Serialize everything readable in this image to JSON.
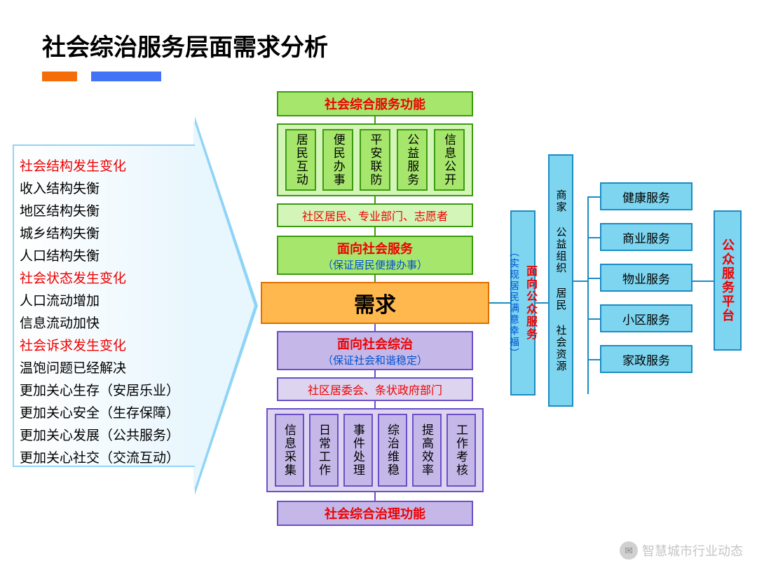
{
  "title": "社会综治服务层面需求分析",
  "accent_bars": {
    "orange": "#f56d09",
    "blue": "#4472f6"
  },
  "arrow_list": [
    {
      "text": "社会结构发生变化",
      "color": "red"
    },
    {
      "text": "收入结构失衡",
      "color": "black"
    },
    {
      "text": "地区结构失衡",
      "color": "black"
    },
    {
      "text": "城乡结构失衡",
      "color": "black"
    },
    {
      "text": "人口结构失衡",
      "color": "black"
    },
    {
      "text": "社会状态发生变化",
      "color": "red"
    },
    {
      "text": "人口流动增加",
      "color": "black"
    },
    {
      "text": "信息流动加快",
      "color": "black"
    },
    {
      "text": "社会诉求发生变化",
      "color": "red"
    },
    {
      "text": "温饱问题已经解决",
      "color": "black"
    },
    {
      "text": "更加关心生存（安居乐业）",
      "color": "black"
    },
    {
      "text": "更加关心安全（生存保障）",
      "color": "black"
    },
    {
      "text": "更加关心发展（公共服务）",
      "color": "black"
    },
    {
      "text": "更加关心社交（交流互动）",
      "color": "black"
    }
  ],
  "top_func": "社会综合服务功能",
  "green_items": [
    "居民互动",
    "便民办事",
    "平安联防",
    "公益服务",
    "信息公开"
  ],
  "green_actors": "社区居民、专业部门、志愿者",
  "service_face": {
    "title": "面向社会服务",
    "sub": "（保证居民便捷办事）"
  },
  "demand": "需求",
  "gov_face": {
    "title": "面向社会综治",
    "sub": "（保证社会和谐稳定）"
  },
  "purple_actors": "社区居委会、条状政府部门",
  "purple_items": [
    "信息采集",
    "日常工作",
    "事件处理",
    "综治维稳",
    "提高效率",
    "工作考核"
  ],
  "bottom_func": "社会综合治理功能",
  "right_col1": {
    "title": "面向公众服务",
    "sub": "（实现居民满意幸福）"
  },
  "right_col2": "商家  公益组织  居民  社会资源",
  "right_services": [
    "健康服务",
    "商业服务",
    "物业服务",
    "小区服务",
    "家政服务"
  ],
  "platform": "公众服务平台",
  "watermark": "智慧城市行业动态",
  "colors": {
    "green_fill": "#a6e66c",
    "green_border": "#3b9b0f",
    "green_light": "#d4f5b8",
    "purple_fill": "#c5b8e8",
    "purple_border": "#6b4fc9",
    "purple_light": "#ddd5f0",
    "orange_fill": "#ffb84d",
    "orange_border": "#e07000",
    "blue_fill": "#7ed5f0",
    "blue_border": "#1b8cc4",
    "red_text": "#e00",
    "blue_text": "#0050d0"
  }
}
